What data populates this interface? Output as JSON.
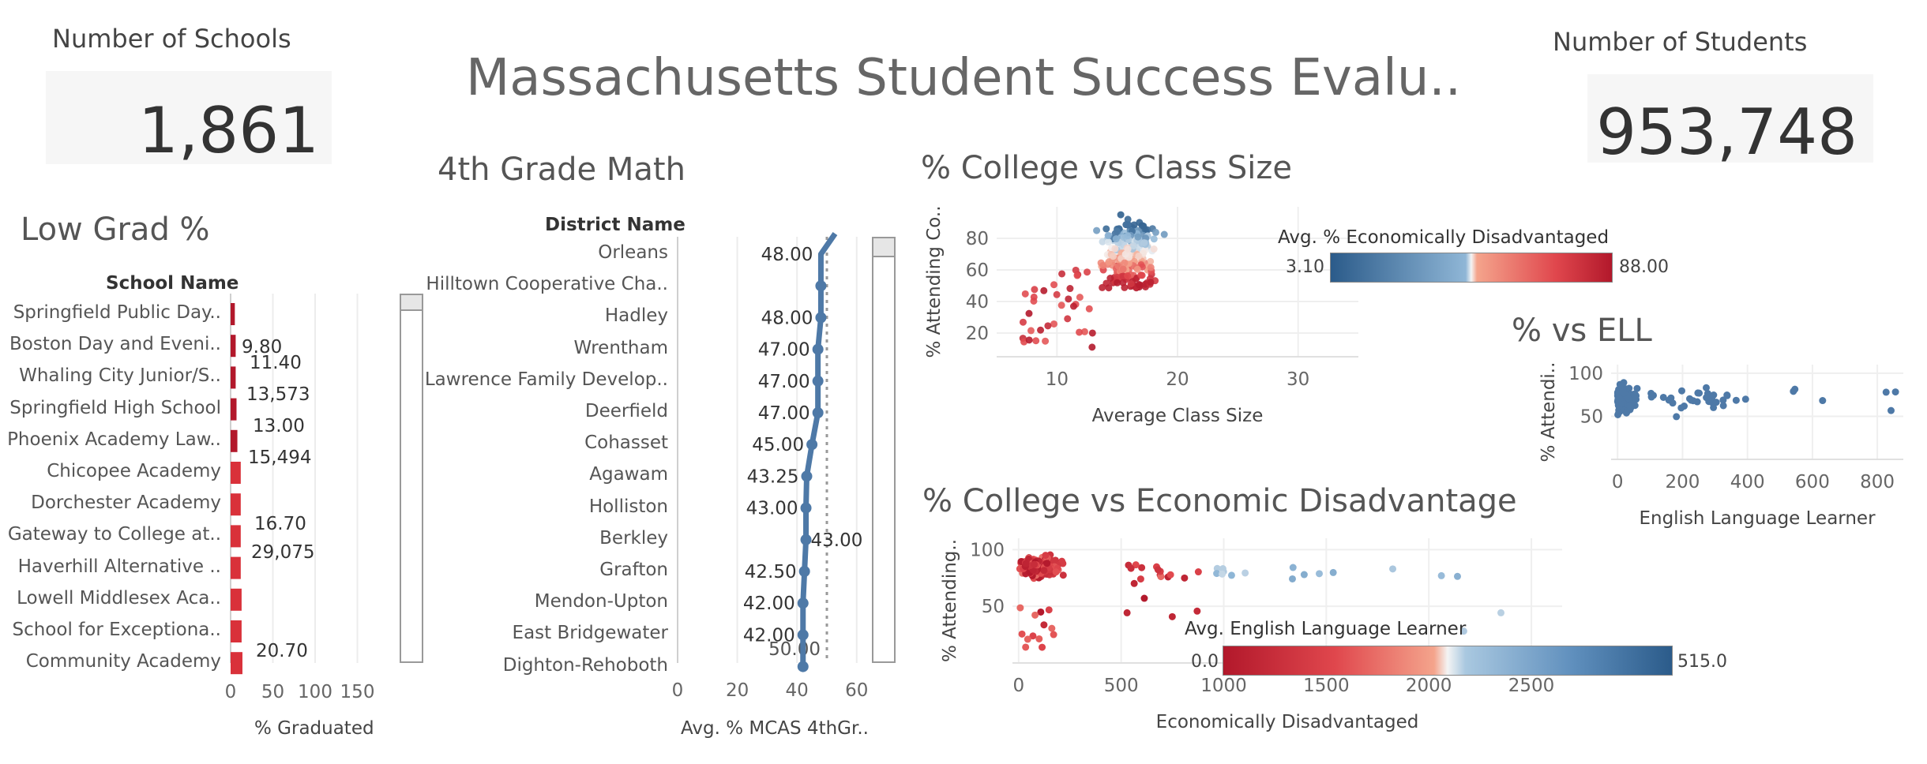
{
  "dashboard": {
    "title": "Massachusetts Student Success Evalu..",
    "kpi_schools": {
      "label": "Number of Schools",
      "value": "1,861"
    },
    "kpi_students": {
      "label": "Number of Students",
      "value": "953,748"
    }
  },
  "colors": {
    "red": "#c8102e",
    "blue": "#4e79a7",
    "grid": "#ececec"
  },
  "chart_data": [
    {
      "id": "low_grad",
      "type": "bar",
      "title": "Low Grad %",
      "header": "School Name",
      "xlabel": "% Graduated",
      "xlim": [
        0,
        200
      ],
      "xticks": [
        0,
        50,
        100,
        150
      ],
      "categories": [
        "Springfield Public Day..",
        "Boston Day and Eveni..",
        "Whaling City Junior/S..",
        "Springfield High School",
        "Phoenix Academy Law..",
        "Chicopee Academy",
        "Dorchester Academy",
        "Gateway to College at..",
        "Haverhill Alternative ..",
        "Lowell Middlesex Aca..",
        "School for Exceptiona..",
        "Community Academy"
      ],
      "values": [
        5,
        6,
        6,
        7,
        8,
        12,
        12,
        12,
        12,
        13,
        13,
        14
      ],
      "annotations": [
        "9.80",
        "11.40",
        "13,573",
        "13.00",
        "15,494",
        "16.70",
        "29,075",
        "20.70"
      ]
    },
    {
      "id": "math4",
      "type": "line",
      "title": "4th Grade Math",
      "header": "District Name",
      "xlabel": "Avg. % MCAS 4thGr..",
      "xlim": [
        0,
        70
      ],
      "xticks": [
        0,
        20,
        40,
        60
      ],
      "reference_line": 50,
      "reference_label": "50.00",
      "categories": [
        "Orleans",
        "Hilltown Cooperative Cha..",
        "Hadley",
        "Wrentham",
        "Lawrence Family Develop..",
        "Deerfield",
        "Cohasset",
        "Agawam",
        "Holliston",
        "Berkley",
        "Grafton",
        "Mendon-Upton",
        "East Bridgewater",
        "Dighton-Rehoboth"
      ],
      "values": [
        48,
        48,
        48,
        47,
        47,
        47,
        45,
        43.25,
        43,
        43,
        42.5,
        42,
        42,
        42
      ],
      "labels": [
        "48.00",
        "",
        "48.00",
        "47.00",
        "47.00",
        "47.00",
        "45.00",
        "43.25",
        "43.00",
        "43.00",
        "42.50",
        "42.00",
        "42.00",
        ""
      ]
    },
    {
      "id": "college_class",
      "type": "scatter",
      "title": "% College vs Class Size",
      "xlabel": "Average Class Size",
      "ylabel": "% Attending Co..",
      "xlim": [
        5,
        35
      ],
      "ylim": [
        5,
        100
      ],
      "xticks": [
        10,
        20,
        30
      ],
      "yticks": [
        20,
        40,
        60,
        80
      ],
      "legend": {
        "title": "Avg. % Economically Disadvantaged",
        "min": "3.10",
        "max": "88.00"
      }
    },
    {
      "id": "college_ell",
      "type": "scatter",
      "title": "% vs ELL",
      "xlabel": "English Language Learner",
      "ylabel": "% Attendi..",
      "xlim": [
        -20,
        880
      ],
      "ylim": [
        0,
        110
      ],
      "xticks": [
        0,
        200,
        400,
        600,
        800
      ],
      "yticks": [
        50,
        100
      ]
    },
    {
      "id": "college_econ",
      "type": "scatter",
      "title": "% College vs Economic Disadvantage",
      "xlabel": "Economically Disadvantaged",
      "ylabel": "% Attending..",
      "xlim": [
        -30,
        2650
      ],
      "ylim": [
        0,
        110
      ],
      "xticks": [
        0,
        500,
        1000,
        1500,
        2000,
        2500
      ],
      "yticks": [
        50,
        100
      ],
      "legend": {
        "title": "Avg. English Language Learner",
        "min": "0.0",
        "max": "515.0"
      }
    }
  ]
}
